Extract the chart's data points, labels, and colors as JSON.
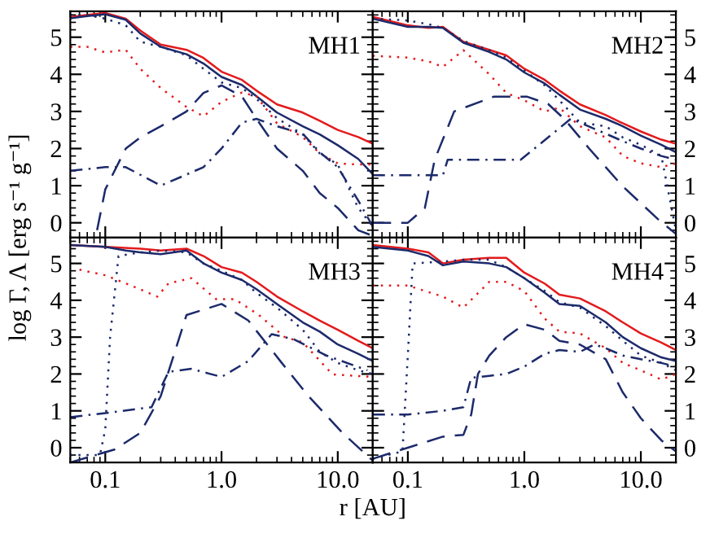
{
  "chart_data": [
    {
      "type": "line",
      "annotations": [
        "MH1"
      ],
      "ylabel": "log Γ, Λ [erg s⁻¹ g⁻¹]",
      "log": "x",
      "xlim": [
        0.05,
        20
      ],
      "ylim": [
        -0.4,
        5.7
      ],
      "xticks": [
        {
          "value": 0.1,
          "label": null
        },
        {
          "value": 1,
          "label": null
        },
        {
          "value": 10,
          "label": null
        }
      ],
      "yticks": [
        0,
        1,
        2,
        3,
        4,
        5
      ],
      "tick_labels": "y",
      "grid": false,
      "legend": false,
      "series": [
        {
          "color": "#e41a1c",
          "line_style": "solid",
          "x": [
            0.05,
            0.07,
            0.1,
            0.15,
            0.2,
            0.3,
            0.5,
            0.7,
            1,
            1.5,
            2,
            3,
            5,
            7,
            10,
            15,
            20
          ],
          "values": [
            5.54,
            5.6,
            5.65,
            5.5,
            5.18,
            4.8,
            4.66,
            4.44,
            4.07,
            3.85,
            3.56,
            3.19,
            2.97,
            2.75,
            2.5,
            2.31,
            2.13
          ]
        },
        {
          "color": "#1c2a6b",
          "line_style": "solid",
          "x": [
            0.05,
            0.07,
            0.1,
            0.15,
            0.2,
            0.3,
            0.5,
            0.7,
            1,
            1.5,
            2,
            3,
            5,
            7,
            10,
            15,
            20
          ],
          "values": [
            5.51,
            5.57,
            5.62,
            5.47,
            5.1,
            4.74,
            4.54,
            4.29,
            3.93,
            3.71,
            3.41,
            2.97,
            2.6,
            2.38,
            2.09,
            1.72,
            1.31
          ]
        },
        {
          "color": "#1c2a6b",
          "line_style": "dotted",
          "x": [
            0.05,
            0.07,
            0.1,
            0.15,
            0.2,
            0.3,
            0.5,
            0.7,
            1,
            1.5,
            2,
            3,
            5,
            7,
            10,
            15,
            20
          ],
          "values": [
            5.6,
            5.6,
            5.5,
            5.32,
            4.88,
            4.74,
            4.51,
            4.15,
            3.78,
            3.63,
            3.34,
            2.82,
            2.38,
            1.87,
            1.57,
            0.4,
            -0.1
          ]
        },
        {
          "color": "#e41a1c",
          "line_style": "dotted",
          "x": [
            0.05,
            0.07,
            0.1,
            0.15,
            0.2,
            0.3,
            0.5,
            0.7,
            1,
            1.5,
            2,
            3,
            5,
            7,
            10,
            15,
            20
          ],
          "values": [
            4.74,
            4.74,
            4.59,
            4.66,
            4.15,
            3.63,
            3.12,
            2.87,
            3.26,
            3.51,
            3.41,
            2.68,
            2.31,
            1.87,
            1.6,
            1.57,
            1.57
          ]
        },
        {
          "color": "#1c2a6b",
          "line_style": "dashed",
          "x": [
            0.085,
            0.1,
            0.15,
            0.2,
            0.3,
            0.5,
            0.7,
            1,
            1.5,
            2,
            3,
            5,
            7,
            10,
            15,
            20
          ],
          "values": [
            -0.2,
            0.9,
            2.0,
            2.3,
            2.6,
            3.0,
            3.5,
            3.7,
            3.4,
            2.8,
            2.0,
            1.4,
            0.8,
            0.4,
            -0.2,
            -0.35
          ]
        },
        {
          "color": "#1c2a6b",
          "line_style": "dashdot",
          "x": [
            0.05,
            0.1,
            0.15,
            0.3,
            0.5,
            0.7,
            1,
            1.5,
            2,
            3,
            5,
            7,
            10,
            15,
            20
          ],
          "values": [
            1.4,
            1.5,
            1.5,
            1.0,
            1.3,
            1.5,
            2.0,
            2.7,
            2.8,
            2.6,
            2.4,
            1.9,
            1.5,
            0.6,
            -0.1
          ]
        }
      ]
    },
    {
      "type": "line",
      "annotations": [
        "MH2"
      ],
      "log": "x",
      "xlim": [
        0.05,
        20
      ],
      "ylim": [
        -0.4,
        5.7
      ],
      "xticks": [
        {
          "value": 0.1,
          "label": null
        },
        {
          "value": 1,
          "label": null
        },
        {
          "value": 10,
          "label": null
        }
      ],
      "yticks": [
        0,
        1,
        2,
        3,
        4,
        5
      ],
      "tick_labels": "y",
      "grid": false,
      "legend": false,
      "series": [
        {
          "color": "#e41a1c",
          "line_style": "solid",
          "x": [
            0.05,
            0.1,
            0.15,
            0.2,
            0.3,
            0.5,
            0.7,
            1,
            1.5,
            2,
            3,
            5,
            7,
            10,
            15,
            20
          ],
          "values": [
            5.55,
            5.32,
            5.25,
            5.28,
            4.88,
            4.66,
            4.51,
            4.15,
            3.85,
            3.56,
            3.19,
            2.9,
            2.68,
            2.46,
            2.24,
            2.13
          ]
        },
        {
          "color": "#1c2a6b",
          "line_style": "solid",
          "x": [
            0.05,
            0.1,
            0.15,
            0.2,
            0.3,
            0.5,
            0.7,
            1,
            1.5,
            2,
            3,
            5,
            7,
            10,
            15,
            20
          ],
          "values": [
            5.5,
            5.28,
            5.28,
            5.25,
            4.85,
            4.6,
            4.4,
            4.05,
            3.75,
            3.45,
            3.05,
            2.8,
            2.6,
            2.35,
            2.1,
            1.9
          ]
        },
        {
          "color": "#1c2a6b",
          "line_style": "dotted",
          "x": [
            0.05,
            0.1,
            0.15,
            0.2,
            0.3,
            0.5,
            0.7,
            1,
            1.5,
            2,
            3,
            5,
            7,
            10,
            15,
            20
          ],
          "values": [
            5.5,
            5.45,
            5.35,
            5.25,
            4.9,
            4.65,
            4.45,
            4.1,
            3.7,
            3.3,
            2.7,
            2.6,
            2.3,
            2.1,
            1.8,
            -0.2
          ]
        },
        {
          "color": "#e41a1c",
          "line_style": "dotted",
          "x": [
            0.05,
            0.1,
            0.15,
            0.2,
            0.3,
            0.5,
            0.7,
            1,
            1.5,
            2,
            3,
            5,
            7,
            10,
            15,
            20
          ],
          "values": [
            4.5,
            4.45,
            4.35,
            4.2,
            4.65,
            4.0,
            3.5,
            3.3,
            3.0,
            3.1,
            2.6,
            2.3,
            1.8,
            1.6,
            1.5,
            1.6
          ]
        },
        {
          "color": "#1c2a6b",
          "line_style": "dashed",
          "x": [
            0.05,
            0.1,
            0.14,
            0.17,
            0.25,
            0.55,
            1.05,
            1.6,
            2.2,
            3.6,
            6.9,
            14,
            20
          ],
          "values": [
            0.0,
            0.0,
            0.4,
            1.7,
            3.0,
            3.4,
            3.4,
            3.2,
            2.8,
            2.0,
            1.0,
            0.1,
            -0.3
          ]
        },
        {
          "color": "#1c2a6b",
          "line_style": "dashdot",
          "x": [
            0.05,
            0.2,
            0.22,
            0.93,
            1.6,
            2.5,
            3,
            5,
            7,
            10,
            15,
            20
          ],
          "values": [
            1.28,
            1.28,
            1.7,
            1.7,
            2.3,
            2.8,
            2.7,
            2.4,
            2.2,
            2.0,
            1.8,
            1.7
          ]
        }
      ]
    },
    {
      "type": "line",
      "annotations": [
        "MH3"
      ],
      "xlabel": "r [AU]",
      "log": "x",
      "xlim": [
        0.05,
        20
      ],
      "ylim": [
        -0.4,
        5.7
      ],
      "xticks": [
        {
          "value": 0.1,
          "label": "0.1"
        },
        {
          "value": 1,
          "label": "1.0"
        },
        {
          "value": 10,
          "label": "10.0"
        }
      ],
      "yticks": [
        0,
        1,
        2,
        3,
        4,
        5
      ],
      "grid": false,
      "legend": false,
      "series": [
        {
          "color": "#e41a1c",
          "line_style": "solid",
          "x": [
            0.05,
            0.1,
            0.2,
            0.3,
            0.5,
            0.7,
            1,
            1.5,
            2,
            3,
            5,
            7,
            10,
            15,
            20
          ],
          "values": [
            5.5,
            5.45,
            5.4,
            5.35,
            5.4,
            5.2,
            4.9,
            4.75,
            4.5,
            4.1,
            3.7,
            3.45,
            3.2,
            2.9,
            2.7
          ]
        },
        {
          "color": "#1c2a6b",
          "line_style": "solid",
          "x": [
            0.05,
            0.1,
            0.15,
            0.2,
            0.3,
            0.5,
            0.7,
            1,
            1.5,
            2,
            3,
            5,
            7,
            10,
            15,
            20
          ],
          "values": [
            5.5,
            5.45,
            5.35,
            5.3,
            5.25,
            5.35,
            5.0,
            4.75,
            4.55,
            4.3,
            3.9,
            3.4,
            3.15,
            2.8,
            2.55,
            2.35
          ]
        },
        {
          "color": "#1c2a6b",
          "line_style": "dotted",
          "x": [
            0.05,
            0.09,
            0.1,
            0.11,
            0.13,
            0.2,
            0.3,
            0.5,
            0.7,
            1,
            1.5,
            2,
            3,
            5,
            7,
            10,
            15,
            20
          ],
          "values": [
            -0.2,
            -0.2,
            0.5,
            3.0,
            5.2,
            5.3,
            5.35,
            5.3,
            5.0,
            4.8,
            4.55,
            4.2,
            3.8,
            3.2,
            2.6,
            2.3,
            2.1,
            2.0
          ]
        },
        {
          "color": "#e41a1c",
          "line_style": "dotted",
          "x": [
            0.06,
            0.1,
            0.17,
            0.28,
            0.35,
            0.55,
            0.9,
            1.3,
            2.1,
            3.5,
            5,
            9,
            20
          ],
          "values": [
            4.83,
            4.68,
            4.39,
            4.1,
            4.46,
            4.6,
            4.03,
            4.03,
            3.6,
            3.0,
            2.86,
            1.99,
            1.92
          ]
        },
        {
          "color": "#1c2a6b",
          "line_style": "dashed",
          "x": [
            0.05,
            0.12,
            0.2,
            0.3,
            0.5,
            1,
            1.7,
            3.3,
            5.6,
            11,
            20
          ],
          "values": [
            -0.4,
            -0.05,
            0.4,
            1.4,
            3.6,
            3.9,
            3.45,
            2.3,
            1.4,
            0.4,
            -0.35
          ]
        },
        {
          "color": "#1c2a6b",
          "line_style": "dashdot",
          "x": [
            0.05,
            0.12,
            0.25,
            0.35,
            0.55,
            1.0,
            1.7,
            2.7,
            4.2,
            8,
            18
          ],
          "values": [
            0.83,
            0.97,
            1.1,
            2.06,
            2.14,
            1.92,
            2.35,
            3.08,
            2.94,
            2.5,
            2.1
          ]
        }
      ]
    },
    {
      "type": "line",
      "annotations": [
        "MH4"
      ],
      "log": "x",
      "xlim": [
        0.05,
        20
      ],
      "ylim": [
        -0.4,
        5.7
      ],
      "xticks": [
        {
          "value": 0.1,
          "label": "0.1"
        },
        {
          "value": 1,
          "label": "1.0"
        },
        {
          "value": 10,
          "label": "10.0"
        }
      ],
      "yticks": [
        0,
        1,
        2,
        3,
        4,
        5
      ],
      "grid": false,
      "legend": false,
      "series": [
        {
          "color": "#e41a1c",
          "line_style": "solid",
          "x": [
            0.05,
            0.1,
            0.15,
            0.2,
            0.3,
            0.5,
            0.7,
            1,
            1.5,
            2,
            3,
            5,
            7,
            10,
            15,
            20
          ],
          "values": [
            5.5,
            5.4,
            5.3,
            5.0,
            5.1,
            5.15,
            5.15,
            4.75,
            4.45,
            4.15,
            4.05,
            3.7,
            3.4,
            3.1,
            2.85,
            2.65
          ]
        },
        {
          "color": "#1c2a6b",
          "line_style": "solid",
          "x": [
            0.05,
            0.1,
            0.15,
            0.2,
            0.3,
            0.5,
            0.7,
            1,
            1.5,
            2,
            3,
            5,
            7,
            10,
            15,
            20
          ],
          "values": [
            5.45,
            5.35,
            5.2,
            4.95,
            5.05,
            5.0,
            4.9,
            4.6,
            4.2,
            3.9,
            3.85,
            3.4,
            3.0,
            2.7,
            2.45,
            2.35
          ]
        },
        {
          "color": "#1c2a6b",
          "line_style": "dotted",
          "x": [
            0.05,
            0.09,
            0.1,
            0.11,
            0.2,
            0.3,
            0.5,
            0.7,
            1,
            1.5,
            2,
            3,
            5,
            7,
            10,
            15,
            20
          ],
          "values": [
            -0.3,
            -0.1,
            2.5,
            5.0,
            5.05,
            5.1,
            5.1,
            4.9,
            4.6,
            4.25,
            3.95,
            3.8,
            3.3,
            2.9,
            2.5,
            2.3,
            2.1
          ]
        },
        {
          "color": "#e41a1c",
          "line_style": "dotted",
          "x": [
            0.05,
            0.1,
            0.2,
            0.3,
            0.5,
            0.7,
            1,
            1.5,
            2,
            3,
            5,
            7,
            10,
            15,
            20
          ],
          "values": [
            4.4,
            4.4,
            4.1,
            3.8,
            4.5,
            4.5,
            4.25,
            3.5,
            3.15,
            3.1,
            2.7,
            2.3,
            2.1,
            1.85,
            2.0
          ]
        },
        {
          "color": "#1c2a6b",
          "line_style": "dashed",
          "x": [
            0.05,
            0.1,
            0.2,
            0.3,
            0.35,
            0.4,
            0.5,
            0.7,
            1,
            1.5,
            2,
            3,
            5,
            7,
            10,
            15,
            20
          ],
          "values": [
            -0.3,
            0.0,
            0.3,
            0.35,
            0.9,
            2.0,
            2.5,
            3.0,
            3.35,
            3.2,
            2.9,
            2.8,
            2.4,
            1.5,
            0.8,
            0.2,
            -0.1
          ]
        },
        {
          "color": "#1c2a6b",
          "line_style": "dashdot",
          "x": [
            0.05,
            0.1,
            0.2,
            0.3,
            0.35,
            0.5,
            0.7,
            1,
            1.5,
            2,
            3,
            4,
            5,
            7,
            10,
            15,
            20
          ],
          "values": [
            0.9,
            0.9,
            1.0,
            1.1,
            1.9,
            1.95,
            2.0,
            2.2,
            2.55,
            2.65,
            2.6,
            2.8,
            2.7,
            2.5,
            2.4,
            2.3,
            2.2
          ]
        }
      ]
    }
  ]
}
